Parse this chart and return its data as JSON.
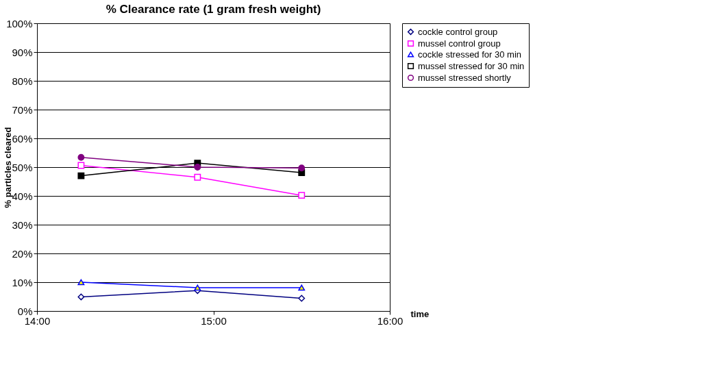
{
  "chart_data": {
    "type": "line",
    "title": "% Clearance rate  (1 gram fresh weight)",
    "xlabel": "time",
    "ylabel": "% particles cleared",
    "x": [
      14.25,
      14.91,
      15.5
    ],
    "xlim": [
      14,
      16
    ],
    "xticks": [
      {
        "value": 14,
        "label": "14:00"
      },
      {
        "value": 15,
        "label": "15:00"
      },
      {
        "value": 16,
        "label": "16:00"
      }
    ],
    "ylim": [
      0,
      100
    ],
    "yticks": [
      {
        "value": 0,
        "label": "0%"
      },
      {
        "value": 10,
        "label": "10%"
      },
      {
        "value": 20,
        "label": "20%"
      },
      {
        "value": 30,
        "label": "30%"
      },
      {
        "value": 40,
        "label": "40%"
      },
      {
        "value": 50,
        "label": "50%"
      },
      {
        "value": 60,
        "label": "60%"
      },
      {
        "value": 70,
        "label": "70%"
      },
      {
        "value": 80,
        "label": "80%"
      },
      {
        "value": 90,
        "label": "90%"
      },
      {
        "value": 100,
        "label": "100%"
      }
    ],
    "series": [
      {
        "name": "cockle control group",
        "color": "#000080",
        "marker": "diamond",
        "values": [
          4.9,
          7.1,
          4.4
        ]
      },
      {
        "name": "mussel control group",
        "color": "#ff00ff",
        "marker": "square",
        "values": [
          50.6,
          46.5,
          40.2
        ]
      },
      {
        "name": "cockle stressed for 30 min",
        "color": "#0000ff",
        "marker": "triangle",
        "values": [
          10.0,
          8.1,
          8.1
        ]
      },
      {
        "name": "mussel stressed for 30 min",
        "color": "#000000",
        "marker": "square",
        "values": [
          47.0,
          51.4,
          48.1
        ]
      },
      {
        "name": "mussel stressed shortly",
        "color": "#800080",
        "marker": "circle",
        "values": [
          53.4,
          50.0,
          49.7
        ]
      }
    ],
    "grid": "y",
    "legend": "top right",
    "line_style": "solid"
  }
}
